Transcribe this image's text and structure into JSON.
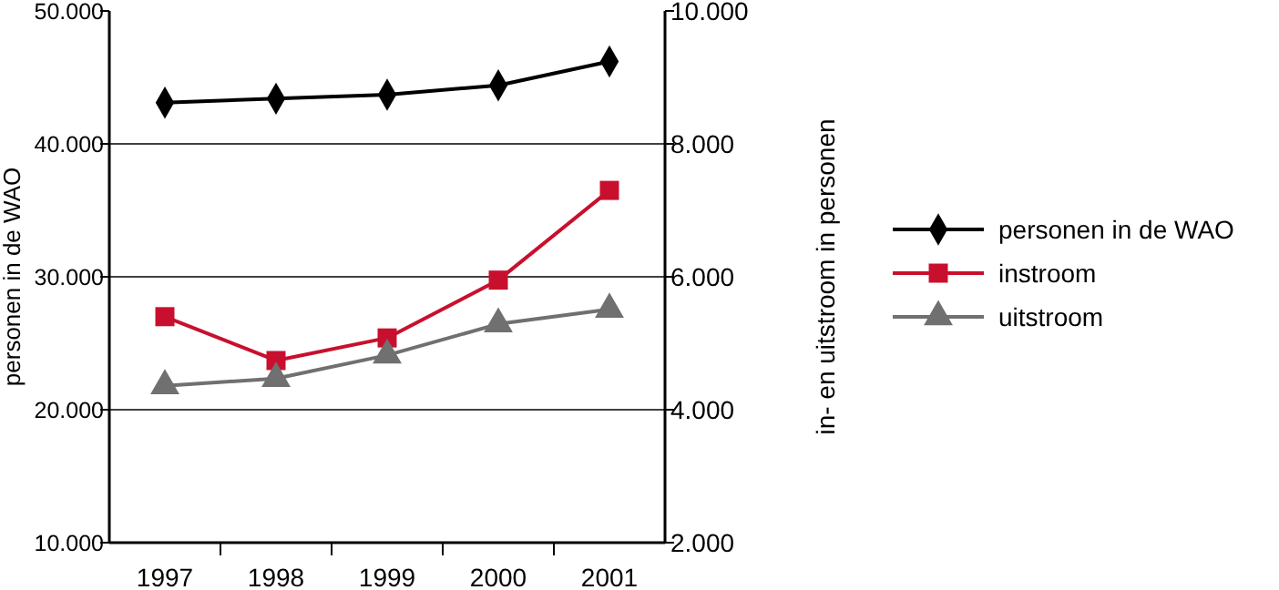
{
  "chart_data": {
    "type": "line",
    "categories": [
      "1997",
      "1998",
      "1999",
      "2000",
      "2001"
    ],
    "ylabel": "personen in de WAO",
    "y2label": "in- en uitstroom in personen",
    "ylim": [
      10000,
      50000
    ],
    "yticks": [
      {
        "value": 10000,
        "label": "10.000"
      },
      {
        "value": 20000,
        "label": "20.000"
      },
      {
        "value": 30000,
        "label": "30.000"
      },
      {
        "value": 40000,
        "label": "40.000"
      },
      {
        "value": 50000,
        "label": "50.000"
      }
    ],
    "y2lim": [
      2000,
      10000
    ],
    "y2ticks": [
      {
        "value": 2000,
        "label": "2.000"
      },
      {
        "value": 4000,
        "label": "4.000"
      },
      {
        "value": 6000,
        "label": "6.000"
      },
      {
        "value": 8000,
        "label": "8.000"
      },
      {
        "value": 10000,
        "label": "10.000"
      }
    ],
    "grid": "y",
    "legend": "right",
    "series": [
      {
        "name": "personen in de WAO",
        "color": "#000000",
        "marker": "diamond",
        "values": [
          43100,
          43400,
          43700,
          44400,
          46200
        ]
      },
      {
        "name": "instroom",
        "color": "#c8102e",
        "marker": "square",
        "axis": "y2",
        "values": [
          5400,
          4740,
          5080,
          5950,
          7300
        ]
      },
      {
        "name": "uitstroom",
        "color": "#707070",
        "marker": "triangle",
        "axis": "y2",
        "values": [
          4360,
          4470,
          4820,
          5290,
          5510
        ]
      }
    ]
  }
}
